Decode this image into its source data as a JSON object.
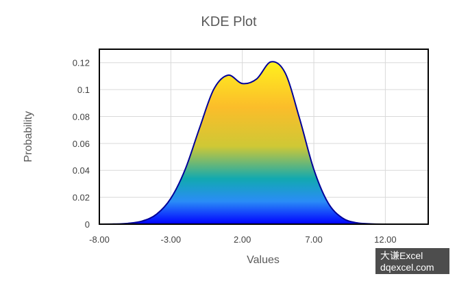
{
  "chart_data": {
    "type": "area",
    "title": "KDE Plot",
    "xlabel": "Values",
    "ylabel": "Probability",
    "xlim": [
      -8,
      15
    ],
    "ylim": [
      0,
      0.13
    ],
    "x_ticks": [
      -8,
      -3,
      2,
      7,
      12
    ],
    "x_tick_labels": [
      "-8.00",
      "-3.00",
      "2.00",
      "7.00",
      "12.00"
    ],
    "y_ticks": [
      0,
      0.02,
      0.04,
      0.06,
      0.08,
      0.1,
      0.12
    ],
    "y_tick_labels": [
      "0",
      "0.02",
      "0.04",
      "0.06",
      "0.08",
      "0.1",
      "0.12"
    ],
    "grid": true,
    "series": [
      {
        "x": [
          -8,
          -7,
          -6,
          -5,
          -4,
          -3,
          -2,
          -1,
          0,
          1,
          2,
          3,
          4,
          5,
          6,
          7,
          8,
          9,
          10,
          11,
          12,
          13,
          14,
          15
        ],
        "y": [
          0,
          0.0001,
          0.0006,
          0.0023,
          0.0074,
          0.0192,
          0.0406,
          0.0712,
          0.1002,
          0.1107,
          0.1045,
          0.1079,
          0.1206,
          0.1123,
          0.0786,
          0.0407,
          0.0158,
          0.0046,
          0.001,
          0.0002,
          0,
          0,
          0,
          0
        ]
      }
    ],
    "line_color": "#000099",
    "fill_gradient": [
      "#fff01e",
      "#fbbd2a",
      "#cfc835",
      "#12a9b0",
      "#2a8cf7",
      "#0000ff"
    ]
  },
  "watermark": {
    "line1": "大谦Excel",
    "line2": "dqexcel.com"
  }
}
